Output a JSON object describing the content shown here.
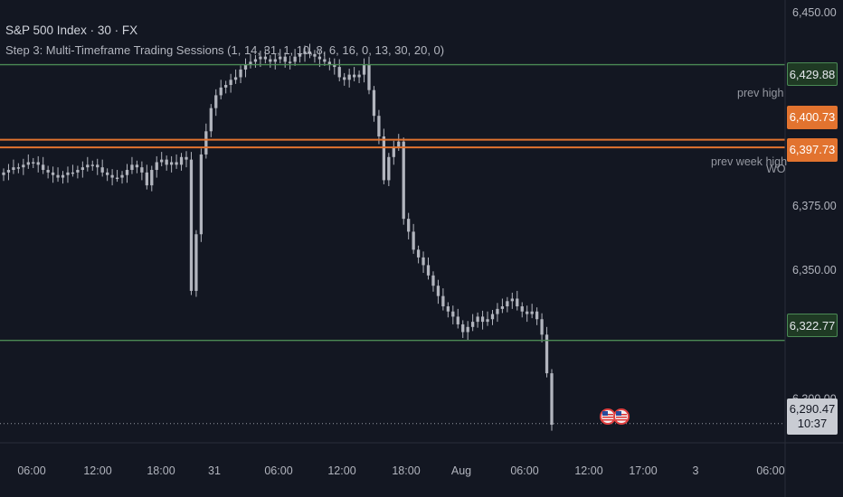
{
  "header": {
    "symbol": "S&P 500 Index · 30 · FX",
    "study": "Step 3: Multi-Timeframe Trading Sessions (1, 14, 31, 1, 10, 8, 6, 16, 0, 13, 30, 20, 0)"
  },
  "levels": {
    "green_top": "6,429.88",
    "orange_top": "6,400.73",
    "orange_bottom": "6,397.73",
    "green_bottom": "6,322.77",
    "prev_high_label": "prev high",
    "prev_week_high_label": "prev week high",
    "wo_label": "WO"
  },
  "last_price": {
    "value": "6,290.47",
    "countdown": "10:37"
  },
  "colors": {
    "background": "#131722",
    "candle": "#b2b5be",
    "green_line": "#4b8a55",
    "orange_line": "#e2732f"
  },
  "chart_data": {
    "type": "candlestick",
    "title": "S&P 500 Index · 30 · FX",
    "ylim": [
      6283,
      6455
    ],
    "y_ticks": [
      "6,450.00",
      "6,375.00",
      "6,350.00",
      "6,300.00"
    ],
    "x_ticks": [
      "06:00",
      "12:00",
      "18:00",
      "31",
      "06:00",
      "12:00",
      "18:00",
      "Aug",
      "06:00",
      "12:00",
      "17:00",
      "3",
      "06:00"
    ],
    "horizontal_lines": [
      {
        "value": 6429.88,
        "label": "prev high",
        "color": "green"
      },
      {
        "value": 6400.73,
        "label": "",
        "color": "orange"
      },
      {
        "value": 6397.73,
        "label": "prev week high",
        "color": "orange"
      },
      {
        "value": 6322.77,
        "label": "",
        "color": "green"
      }
    ],
    "last": 6290.47,
    "close_series": [
      6388,
      6389,
      6390,
      6390,
      6391,
      6392,
      6392,
      6391,
      6389,
      6388,
      6387,
      6386,
      6387,
      6388,
      6388,
      6389,
      6390,
      6391,
      6391,
      6390,
      6388,
      6387,
      6386,
      6386,
      6387,
      6389,
      6391,
      6390,
      6388,
      6383,
      6389,
      6392,
      6393,
      6391,
      6392,
      6391,
      6394,
      6393,
      6342,
      6364,
      6395,
      6404,
      6413,
      6418,
      6421,
      6422,
      6424,
      6425,
      6428,
      6430,
      6431,
      6432,
      6433,
      6432,
      6431,
      6432,
      6433,
      6431,
      6431,
      6433,
      6434,
      6435,
      6434,
      6433,
      6432,
      6431,
      6430,
      6429,
      6425,
      6424,
      6426,
      6425,
      6426,
      6430,
      6420,
      6410,
      6402,
      6385,
      6394,
      6398,
      6400,
      6370,
      6365,
      6358,
      6355,
      6352,
      6348,
      6344,
      6340,
      6336,
      6334,
      6332,
      6329,
      6326,
      6328,
      6330,
      6332,
      6330,
      6331,
      6333,
      6335,
      6336,
      6338,
      6339,
      6336,
      6334,
      6333,
      6334,
      6331,
      6325,
      6310,
      6290
    ]
  }
}
